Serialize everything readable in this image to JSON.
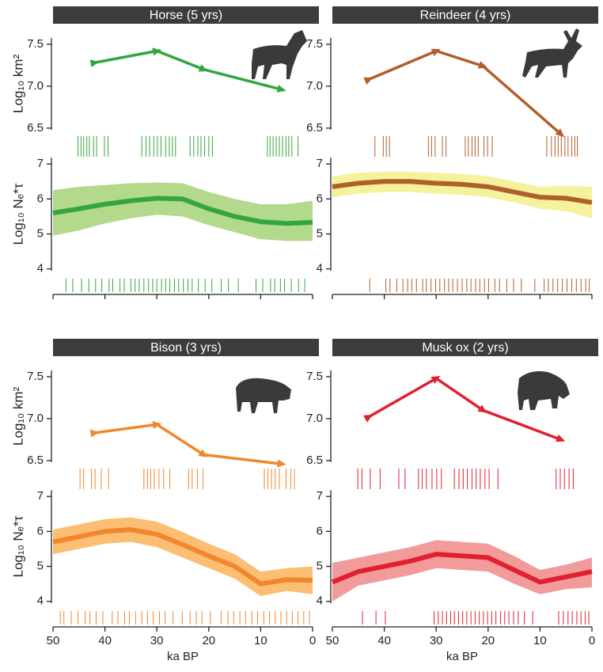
{
  "chart_data": [
    {
      "type": "line",
      "title": "Horse (5 yrs)",
      "ylabel": "Log₁₀ km²",
      "color": "#35a540",
      "x": [
        42,
        30,
        21,
        6
      ],
      "values": [
        7.28,
        7.42,
        7.2,
        6.96
      ],
      "xlim": [
        50,
        0
      ],
      "ylim": [
        6.14,
        7.65
      ],
      "yticks": [
        6.5,
        {
          "value": 7,
          "label": "7.0"
        },
        7.5
      ],
      "rug": [
        45.2,
        44.6,
        44.1,
        43.5,
        43.0,
        42.2,
        41.6,
        40.1,
        39.4,
        32.9,
        32.1,
        31.4,
        30.6,
        29.9,
        29.2,
        28.3,
        27.6,
        27.0,
        26.4,
        23.6,
        22.9,
        22.1,
        21.5,
        20.8,
        20.0,
        19.3,
        8.7,
        8.2,
        7.6,
        7.0,
        6.4,
        5.8,
        5.1,
        4.6,
        4.0,
        2.8
      ]
    },
    {
      "type": "band-line",
      "ylabel": "Log₁₀ Nₑ*τ",
      "color": "#35a540",
      "band_color": "#b3d98c",
      "x": [
        50,
        45,
        40,
        35,
        30,
        25,
        20,
        15,
        10,
        5,
        0
      ],
      "values": [
        5.6,
        5.72,
        5.85,
        5.95,
        6.02,
        6.0,
        5.72,
        5.5,
        5.35,
        5.3,
        5.33
      ],
      "lower": [
        4.95,
        5.1,
        5.3,
        5.45,
        5.55,
        5.5,
        5.25,
        5.05,
        4.85,
        4.8,
        4.8
      ],
      "upper": [
        6.25,
        6.35,
        6.4,
        6.45,
        6.47,
        6.45,
        6.2,
        6.0,
        5.85,
        5.85,
        5.95
      ],
      "xlim": [
        50,
        0
      ],
      "ylim": [
        3.27,
        7.05
      ],
      "yticks": [
        4,
        5,
        6,
        7
      ],
      "xticks": [
        50,
        40,
        30,
        20,
        10,
        0
      ],
      "show_xtick_labels": false,
      "rug": [
        47.5,
        46.2,
        44.5,
        43.1,
        41.8,
        40.6,
        39.2,
        38.5,
        37.1,
        36.3,
        35.0,
        34.2,
        33.4,
        32.5,
        31.6,
        30.8,
        30.0,
        29.1,
        28.3,
        27.5,
        26.6,
        25.8,
        24.9,
        24.0,
        23.2,
        22.0,
        20.7,
        19.4,
        17.6,
        16.2,
        14.3,
        10.9,
        9.6,
        8.1,
        7.3,
        6.2,
        5.4,
        4.1,
        2.7,
        1.5
      ]
    },
    {
      "type": "line",
      "title": "Reindeer (4 yrs)",
      "color": "#b05f2b",
      "x": [
        43,
        30,
        21,
        6
      ],
      "values": [
        7.08,
        7.42,
        7.24,
        6.43
      ],
      "xlim": [
        50,
        0
      ],
      "ylim": [
        6.14,
        7.65
      ],
      "yticks": [
        6.5,
        {
          "value": 7,
          "label": "7.0"
        },
        7.5
      ],
      "rug": [
        41.8,
        40.2,
        39.6,
        39.0,
        31.5,
        30.9,
        30.2,
        28.8,
        28.1,
        24.4,
        23.8,
        23.1,
        22.5,
        21.9,
        20.8,
        20.1,
        19.2,
        8.7,
        7.8,
        7.1,
        6.5,
        5.9,
        5.2,
        4.6,
        3.9,
        3.3,
        2.8
      ]
    },
    {
      "type": "band-line",
      "color": "#b05f2b",
      "band_color": "#f6f19c",
      "x": [
        50,
        45,
        40,
        35,
        30,
        25,
        20,
        15,
        10,
        5,
        0
      ],
      "values": [
        6.35,
        6.45,
        6.5,
        6.5,
        6.45,
        6.42,
        6.35,
        6.2,
        6.05,
        6.02,
        5.9
      ],
      "lower": [
        6.05,
        6.15,
        6.2,
        6.2,
        6.15,
        6.12,
        6.05,
        5.9,
        5.72,
        5.65,
        5.45
      ],
      "upper": [
        6.65,
        6.75,
        6.78,
        6.78,
        6.75,
        6.72,
        6.65,
        6.5,
        6.35,
        6.38,
        6.35
      ],
      "xlim": [
        50,
        0
      ],
      "ylim": [
        3.27,
        7.05
      ],
      "yticks": [
        4,
        5,
        6,
        7
      ],
      "xticks": [
        50,
        40,
        30,
        20,
        10,
        0
      ],
      "show_xtick_labels": false,
      "rug": [
        42.8,
        39.7,
        38.9,
        37.6,
        36.4,
        35.5,
        34.7,
        33.8,
        32.6,
        31.9,
        31.0,
        30.1,
        29.3,
        28.4,
        27.6,
        26.8,
        25.9,
        25.0,
        24.1,
        23.3,
        22.4,
        21.6,
        20.7,
        19.9,
        18.7,
        17.8,
        16.4,
        15.1,
        13.6,
        11.0,
        9.2,
        8.4,
        7.5,
        6.6,
        5.7,
        4.8,
        3.9,
        3.0,
        2.1,
        1.2,
        0.5
      ]
    },
    {
      "type": "line",
      "title": "Bison (3 yrs)",
      "ylabel": "Log₁₀ km²",
      "color": "#f2862c",
      "x": [
        42,
        30,
        21,
        6
      ],
      "values": [
        6.83,
        6.93,
        6.57,
        6.46
      ],
      "xlim": [
        50,
        0
      ],
      "ylim": [
        6.14,
        7.65
      ],
      "yticks": [
        6.5,
        {
          "value": 7,
          "label": "7.0"
        },
        7.5
      ],
      "rug": [
        44.8,
        44.1,
        42.6,
        41.9,
        40.7,
        39.3,
        32.5,
        31.8,
        31.2,
        30.5,
        29.6,
        28.7,
        27.5,
        23.9,
        23.2,
        22.2,
        21.1,
        9.3,
        8.6,
        7.9,
        7.2,
        6.4,
        5.1,
        4.2,
        3.5
      ]
    },
    {
      "type": "band-line",
      "ylabel": "Log₁₀ Nₑ*τ",
      "xlabel": "ka BP",
      "color": "#f2862c",
      "band_color": "#fbbe73",
      "x": [
        50,
        45,
        40,
        35,
        30,
        25,
        20,
        15,
        10,
        5,
        0
      ],
      "values": [
        5.7,
        5.85,
        6.0,
        6.05,
        5.92,
        5.62,
        5.3,
        5.0,
        4.5,
        4.62,
        4.6
      ],
      "lower": [
        5.35,
        5.5,
        5.65,
        5.7,
        5.55,
        5.25,
        4.95,
        4.65,
        4.15,
        4.3,
        4.2
      ],
      "upper": [
        6.05,
        6.2,
        6.35,
        6.4,
        6.28,
        5.98,
        5.65,
        5.35,
        4.85,
        4.95,
        5.0
      ],
      "xlim": [
        50,
        0
      ],
      "ylim": [
        3.27,
        7.05
      ],
      "yticks": [
        4,
        5,
        6,
        7
      ],
      "xticks": [
        50,
        40,
        30,
        20,
        10,
        0
      ],
      "show_xtick_labels": true,
      "rug": [
        48.6,
        47.9,
        46.5,
        45.2,
        43.8,
        42.9,
        41.7,
        40.4,
        38.6,
        37.5,
        36.2,
        35.3,
        34.1,
        32.9,
        31.8,
        30.7,
        29.5,
        28.4,
        26.9,
        25.1,
        23.6,
        22.4,
        21.3,
        19.7,
        17.6,
        16.3,
        15.2,
        14.0,
        12.9,
        11.7,
        10.6,
        9.4,
        8.3,
        7.2,
        6.1,
        5.0,
        3.9,
        2.8,
        1.7,
        0.6
      ]
    },
    {
      "type": "line",
      "title": "Musk ox (2 yrs)",
      "color": "#e0202e",
      "x": [
        43,
        30,
        21,
        6
      ],
      "values": [
        7.02,
        7.48,
        7.1,
        6.75
      ],
      "xlim": [
        50,
        0
      ],
      "ylim": [
        6.14,
        7.65
      ],
      "yticks": [
        6.5,
        {
          "value": 7,
          "label": "7.0"
        },
        7.5
      ],
      "rug": [
        45.1,
        44.3,
        42.7,
        40.8,
        37.2,
        36.0,
        33.4,
        32.7,
        31.9,
        30.8,
        29.9,
        29.0,
        26.5,
        25.6,
        24.8,
        24.0,
        23.1,
        22.3,
        21.5,
        20.6,
        19.8,
        18.1,
        6.9,
        6.1,
        5.3,
        4.4,
        3.6
      ]
    },
    {
      "type": "band-line",
      "xlabel": "ka BP",
      "color": "#e0202e",
      "band_color": "#f29b9b",
      "x": [
        50,
        45,
        40,
        35,
        30,
        25,
        20,
        15,
        10,
        5,
        0
      ],
      "values": [
        4.55,
        4.85,
        5.0,
        5.15,
        5.35,
        5.3,
        5.25,
        4.9,
        4.55,
        4.7,
        4.85
      ],
      "lower": [
        4.0,
        4.45,
        4.6,
        4.75,
        4.95,
        4.9,
        4.85,
        4.5,
        4.2,
        4.35,
        4.4
      ],
      "upper": [
        5.1,
        5.25,
        5.4,
        5.55,
        5.75,
        5.7,
        5.65,
        5.3,
        4.9,
        5.05,
        5.25
      ],
      "xlim": [
        50,
        0
      ],
      "ylim": [
        3.27,
        7.05
      ],
      "yticks": [
        4,
        5,
        6,
        7
      ],
      "xticks": [
        50,
        40,
        30,
        20,
        10,
        0
      ],
      "show_xtick_labels": true,
      "rug": [
        44.2,
        41.6,
        39.8,
        30.4,
        29.6,
        28.8,
        28.0,
        27.2,
        26.5,
        25.7,
        24.9,
        24.1,
        23.3,
        22.5,
        21.7,
        20.9,
        20.1,
        19.3,
        18.5,
        17.6,
        16.8,
        16.0,
        15.1,
        14.2,
        13.0,
        11.4,
        6.4,
        5.5,
        4.6,
        3.8,
        2.9,
        2.1,
        1.3,
        0.6
      ]
    }
  ]
}
